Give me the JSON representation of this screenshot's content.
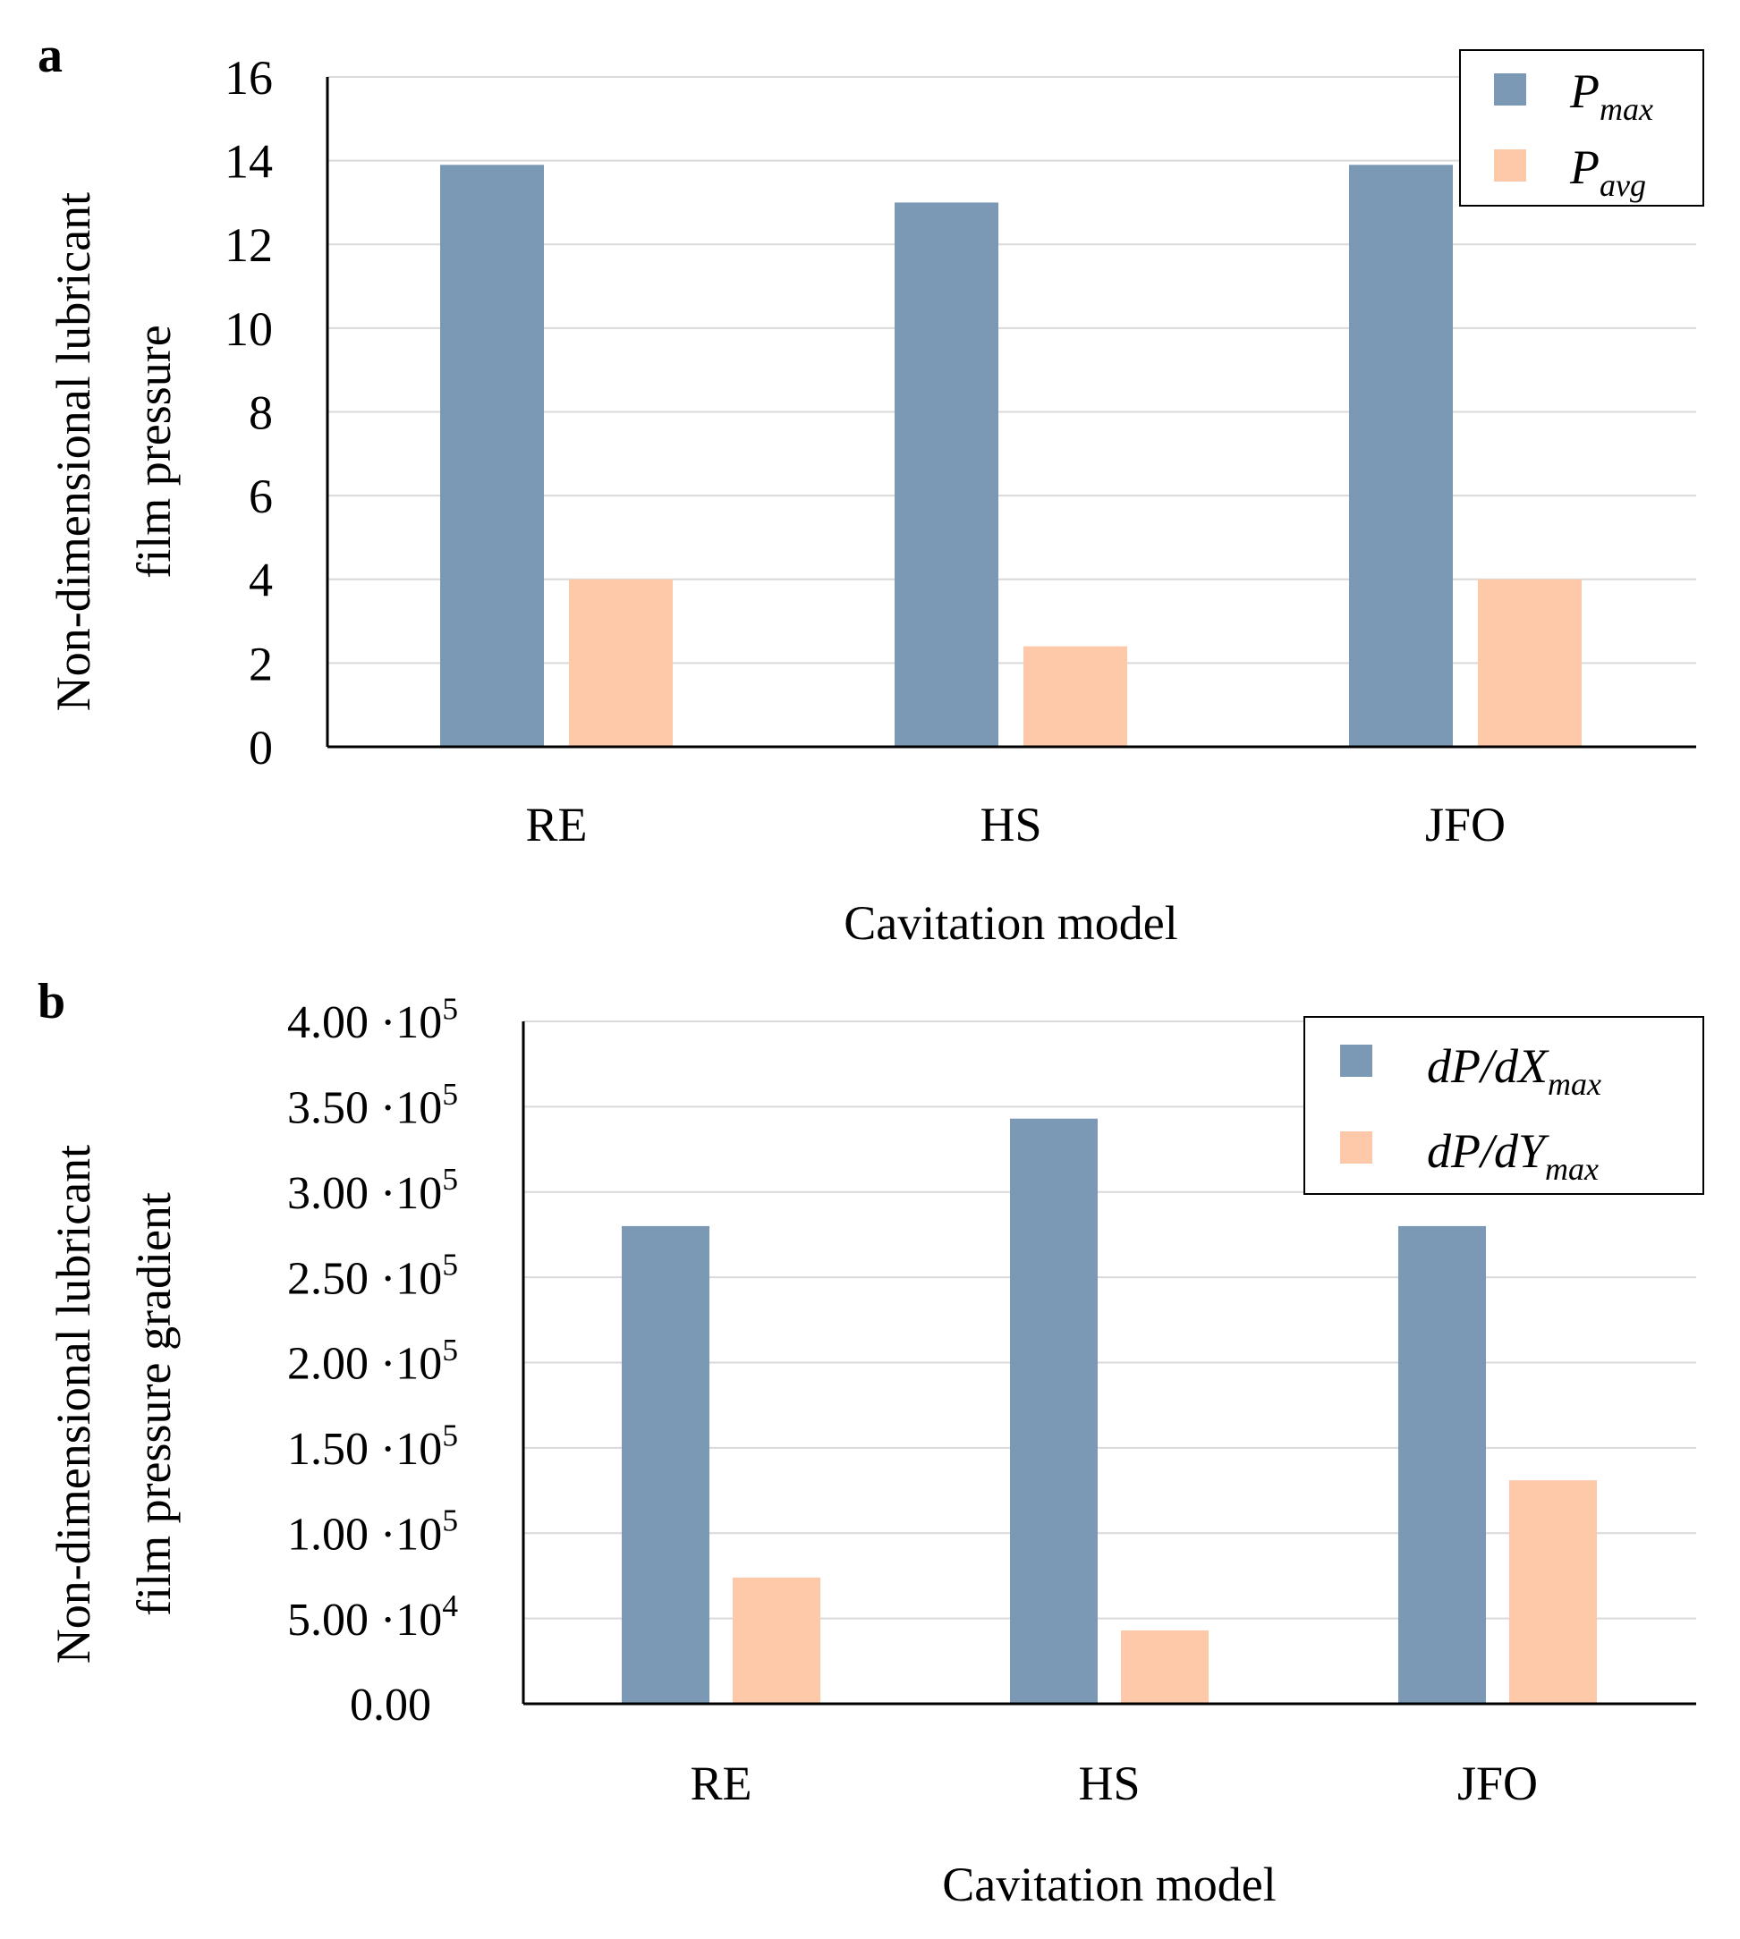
{
  "colors": {
    "series1": "#7b99b5",
    "series2": "#fdc9a8",
    "grid": "#d9d9d9",
    "axis": "#000000"
  },
  "chart_data": [
    {
      "panel": "a",
      "type": "bar",
      "categories": [
        "RE",
        "HS",
        "JFO"
      ],
      "series": [
        {
          "name_base": "P",
          "name_sub": "max",
          "values": [
            13.9,
            13.0,
            13.9
          ]
        },
        {
          "name_base": "P",
          "name_sub": "avg",
          "values": [
            4.0,
            2.4,
            4.0
          ]
        }
      ],
      "ylim": [
        0,
        16
      ],
      "yticks": [
        {
          "value": 0,
          "label": "0"
        },
        {
          "value": 2,
          "label": "2"
        },
        {
          "value": 4,
          "label": "4"
        },
        {
          "value": 6,
          "label": "6"
        },
        {
          "value": 8,
          "label": "8"
        },
        {
          "value": 10,
          "label": "10"
        },
        {
          "value": 12,
          "label": "12"
        },
        {
          "value": 14,
          "label": "14"
        },
        {
          "value": 16,
          "label": "16"
        }
      ],
      "ylabel": [
        "Non-dimensional lubricant",
        "film pressure"
      ],
      "xlabel": "Cavitation model",
      "legend": "top-right",
      "grid": true
    },
    {
      "panel": "b",
      "type": "bar",
      "categories": [
        "RE",
        "HS",
        "JFO"
      ],
      "series": [
        {
          "name_base": "dP/dX",
          "name_sub": "max",
          "values": [
            280000,
            343000,
            280000
          ]
        },
        {
          "name_base": "dP/dY",
          "name_sub": "max",
          "values": [
            74000,
            43000,
            131000
          ]
        }
      ],
      "ylim": [
        0,
        400000
      ],
      "yticks": [
        {
          "value": 0,
          "label": "0.00",
          "exp": ""
        },
        {
          "value": 50000,
          "label": "5.00 ·10",
          "exp": "4"
        },
        {
          "value": 100000,
          "label": "1.00 ·10",
          "exp": "5"
        },
        {
          "value": 150000,
          "label": "1.50 ·10",
          "exp": "5"
        },
        {
          "value": 200000,
          "label": "2.00 ·10",
          "exp": "5"
        },
        {
          "value": 250000,
          "label": "2.50 ·10",
          "exp": "5"
        },
        {
          "value": 300000,
          "label": "3.00 ·10",
          "exp": "5"
        },
        {
          "value": 350000,
          "label": "3.50 ·10",
          "exp": "5"
        },
        {
          "value": 400000,
          "label": "4.00 ·10",
          "exp": "5"
        }
      ],
      "ylabel": [
        "Non-dimensional lubricant",
        "film pressure gradient"
      ],
      "xlabel": "Cavitation model",
      "legend": "top-right",
      "grid": true
    }
  ]
}
